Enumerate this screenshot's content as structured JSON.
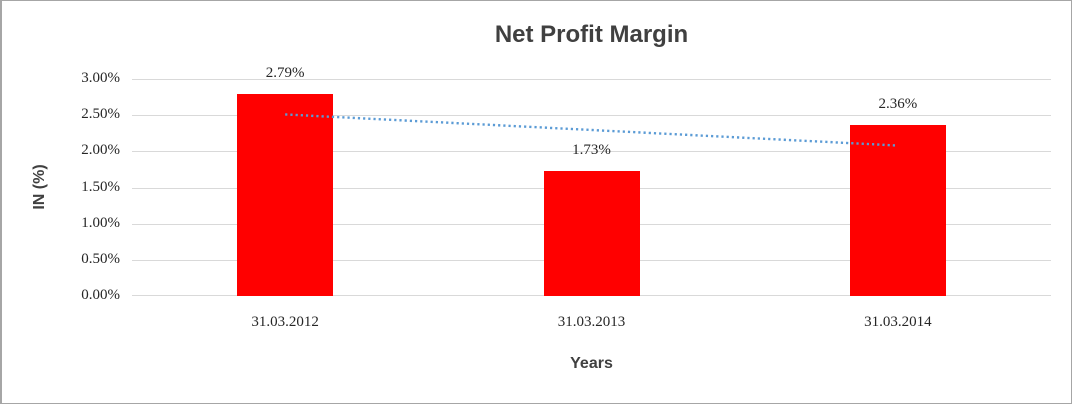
{
  "frame": {
    "background": "#ffffff",
    "border_color": "#a6a6a6"
  },
  "chart_data": {
    "type": "bar",
    "title": "Net Profit Margin",
    "xlabel": "Years",
    "ylabel": "IN (%)",
    "categories": [
      "31.03.2012",
      "31.03.2013",
      "31.03.2014"
    ],
    "series": [
      {
        "name": "Net Profit Margin",
        "color": "#ff0000",
        "values": [
          2.79,
          1.73,
          2.36
        ],
        "data_labels": [
          "2.79%",
          "1.73%",
          "2.36%"
        ]
      }
    ],
    "ylim": [
      0,
      3.0
    ],
    "yticks": [
      {
        "value": 3.0,
        "label": "3.00%"
      },
      {
        "value": 2.5,
        "label": "2.50%"
      },
      {
        "value": 2.0,
        "label": "2.00%"
      },
      {
        "value": 1.5,
        "label": "1.50%"
      },
      {
        "value": 1.0,
        "label": "1.00%"
      },
      {
        "value": 0.5,
        "label": "0.50%"
      },
      {
        "value": 0.0,
        "label": "0.00%"
      }
    ],
    "grid": true,
    "gridline_color": "#d9d9d9",
    "legend": "none",
    "trendline": {
      "type": "linear",
      "style": "dotted",
      "color": "#5b9bd5",
      "start_value": 2.51,
      "end_value": 2.08
    },
    "text_colors": {
      "title": "#404040",
      "axis_titles": "#404040",
      "tick_labels": "#262626",
      "data_labels": "#262626"
    }
  }
}
